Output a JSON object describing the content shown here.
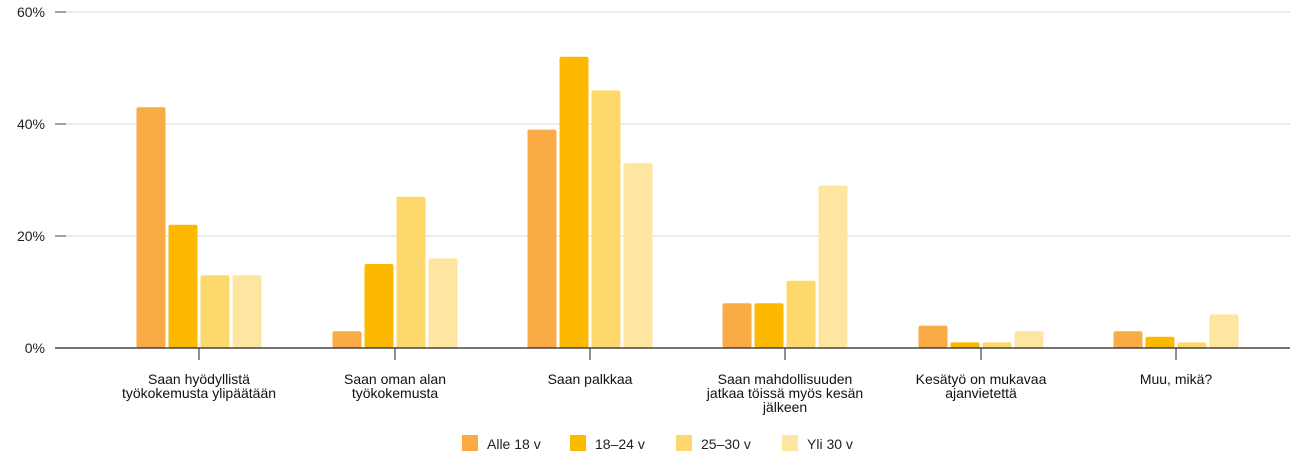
{
  "chart_data": {
    "type": "bar",
    "categories": [
      [
        "Saan hyödyllistä",
        "työkokemusta ylipäätään"
      ],
      [
        "Saan oman alan",
        "työkokemusta"
      ],
      [
        "Saan palkkaa"
      ],
      [
        "Saan mahdollisuuden",
        "jatkaa töissä myös kesän",
        "jälkeen"
      ],
      [
        "Kesätyö on mukavaa",
        "ajanvietettä"
      ],
      [
        "Muu, mikä?"
      ]
    ],
    "series": [
      {
        "name": "Alle 18 v",
        "color": "#FBAB45",
        "values": [
          43,
          3,
          39,
          8,
          4,
          3
        ]
      },
      {
        "name": "18–24 v",
        "color": "#FCB900",
        "values": [
          22,
          15,
          52,
          8,
          1,
          2
        ]
      },
      {
        "name": "25–30 v",
        "color": "#FED86C",
        "values": [
          13,
          27,
          46,
          12,
          1,
          1
        ]
      },
      {
        "name": "Yli 30 v",
        "color": "#FEE6A0",
        "values": [
          13,
          16,
          33,
          29,
          3,
          6
        ]
      }
    ],
    "yticks": [
      0,
      20,
      40,
      60
    ],
    "ytick_labels": [
      "0%",
      "20%",
      "40%",
      "60%"
    ],
    "ylim": [
      0,
      60
    ],
    "grid": true,
    "legend_position": "bottom"
  }
}
